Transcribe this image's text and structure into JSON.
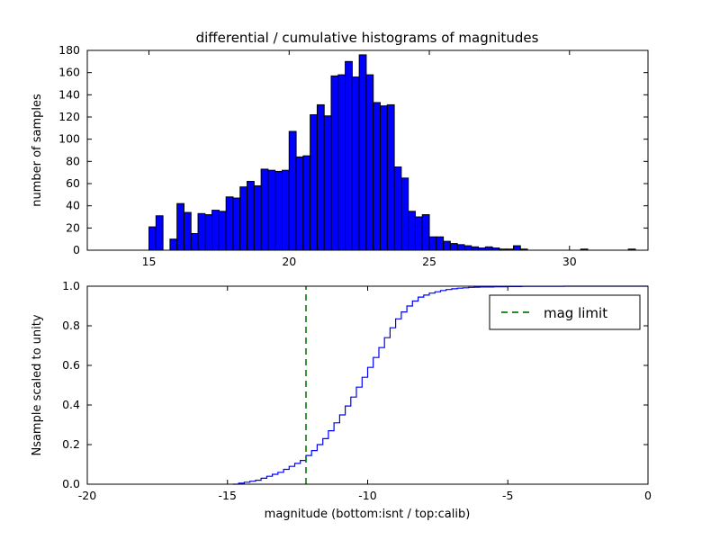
{
  "figure": {
    "background": "#ffffff",
    "frame_color": "#000000"
  },
  "chart_data": [
    {
      "type": "bar",
      "title": "differential / cumulative histograms of magnitudes",
      "ylabel": "number of samples",
      "xlabel": "",
      "xlim": [
        12.8,
        32.8
      ],
      "ylim": [
        0,
        180
      ],
      "xticks": [
        15,
        20,
        25,
        30
      ],
      "yticks": [
        0,
        20,
        40,
        60,
        80,
        100,
        120,
        140,
        160,
        180
      ],
      "ytick_decimals": 0,
      "grid": false,
      "bar_color": "#0000ff",
      "bar_edge_color": "#000000",
      "bin_start": 15.0,
      "bin_width": 0.25,
      "values": [
        21,
        31,
        0,
        10,
        42,
        34,
        15,
        33,
        32,
        36,
        35,
        48,
        47,
        57,
        62,
        58,
        73,
        72,
        71,
        72,
        107,
        84,
        85,
        122,
        131,
        121,
        157,
        158,
        170,
        156,
        176,
        158,
        133,
        130,
        131,
        75,
        65,
        35,
        30,
        32,
        12,
        12,
        8,
        6,
        5,
        4,
        3,
        2,
        3,
        2,
        1,
        1,
        4,
        1
      ],
      "extra_bars": [
        {
          "x": 30.4,
          "h": 1
        },
        {
          "x": 32.1,
          "h": 1
        }
      ]
    },
    {
      "type": "line",
      "title": "",
      "ylabel": "Nsample scaled to unity",
      "xlabel": "magnitude (bottom:isnt / top:calib)",
      "xlim": [
        -20,
        0
      ],
      "ylim": [
        0,
        1
      ],
      "xticks": [
        -20,
        -15,
        -10,
        -5,
        0
      ],
      "yticks": [
        0.0,
        0.2,
        0.4,
        0.6,
        0.8,
        1.0
      ],
      "ytick_decimals": 1,
      "grid": false,
      "line_color": "#0000ff",
      "step_points": [
        [
          -14.8,
          0
        ],
        [
          -14.6,
          0.005
        ],
        [
          -14.4,
          0.01
        ],
        [
          -14.2,
          0.015
        ],
        [
          -14.0,
          0.02
        ],
        [
          -13.8,
          0.03
        ],
        [
          -13.6,
          0.04
        ],
        [
          -13.4,
          0.05
        ],
        [
          -13.2,
          0.06
        ],
        [
          -13.0,
          0.075
        ],
        [
          -12.8,
          0.09
        ],
        [
          -12.6,
          0.105
        ],
        [
          -12.4,
          0.12
        ],
        [
          -12.2,
          0.145
        ],
        [
          -12.0,
          0.17
        ],
        [
          -11.8,
          0.2
        ],
        [
          -11.6,
          0.23
        ],
        [
          -11.4,
          0.27
        ],
        [
          -11.2,
          0.31
        ],
        [
          -11.0,
          0.35
        ],
        [
          -10.8,
          0.395
        ],
        [
          -10.6,
          0.44
        ],
        [
          -10.4,
          0.49
        ],
        [
          -10.2,
          0.54
        ],
        [
          -10.0,
          0.59
        ],
        [
          -9.8,
          0.64
        ],
        [
          -9.6,
          0.69
        ],
        [
          -9.4,
          0.74
        ],
        [
          -9.2,
          0.79
        ],
        [
          -9.0,
          0.835
        ],
        [
          -8.8,
          0.87
        ],
        [
          -8.6,
          0.9
        ],
        [
          -8.4,
          0.925
        ],
        [
          -8.2,
          0.945
        ],
        [
          -8.0,
          0.955
        ],
        [
          -7.8,
          0.965
        ],
        [
          -7.6,
          0.972
        ],
        [
          -7.4,
          0.978
        ],
        [
          -7.2,
          0.983
        ],
        [
          -7.0,
          0.987
        ],
        [
          -6.8,
          0.99
        ],
        [
          -6.6,
          0.992
        ],
        [
          -6.4,
          0.994
        ],
        [
          -6.2,
          0.995
        ],
        [
          -6.0,
          0.996
        ],
        [
          -5.5,
          0.997
        ],
        [
          -5.0,
          0.998
        ],
        [
          -4.5,
          0.999
        ],
        [
          -4.0,
          0.999
        ],
        [
          -3.0,
          1.0
        ],
        [
          0,
          1.0
        ]
      ],
      "mag_limit": {
        "x": -12.2,
        "color": "#008000",
        "label": "mag limit"
      },
      "legend": {
        "label": "mag limit",
        "position": "upper right"
      }
    }
  ]
}
